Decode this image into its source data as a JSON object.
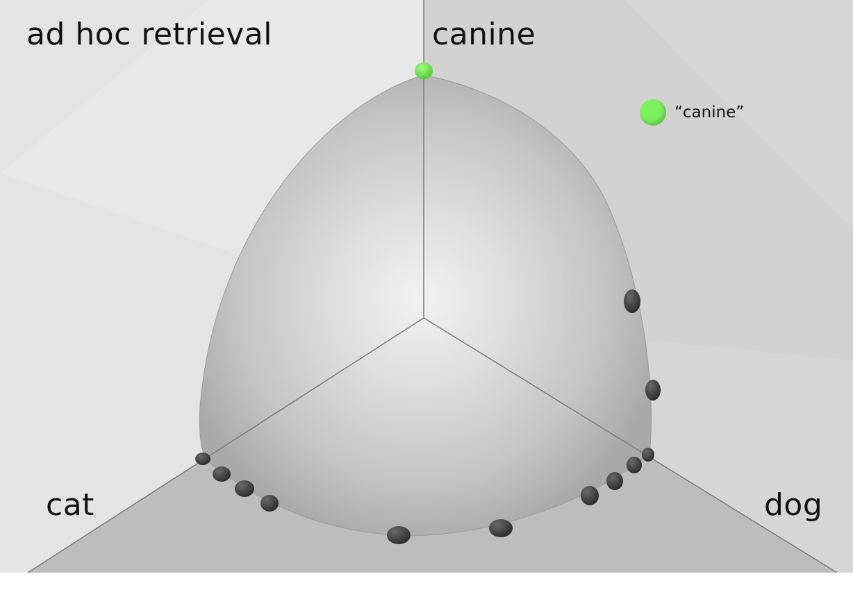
{
  "title": "ad hoc retrieval",
  "axes": {
    "top": "canine",
    "left": "cat",
    "right": "dog"
  },
  "legend": {
    "label": "“canine”",
    "color": "#7df060"
  },
  "colors": {
    "query_point": "#6fe04c",
    "documents": "#3c3c3c",
    "surface": "#cfcfcf"
  }
}
